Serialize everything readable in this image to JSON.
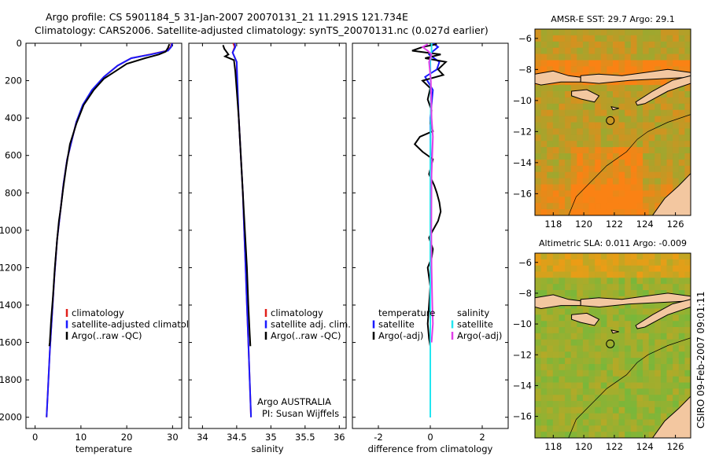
{
  "title_line1": "Argo profile: CS 5901184_5 31-Jan-2007 20070131_21 11.291S 121.734E",
  "title_line2": "Climatology: CARS2006. Satellite-adjusted climatology: synTS_20070131.nc (0.027d earlier)",
  "side_label": "CSIRO 09-Feb-2007 09:01:11",
  "colors": {
    "climatology": "#e0201a",
    "satellite": "#1a1aff",
    "argo": "#000000",
    "satellite_cyan": "#22e6f0",
    "argo_adj_magenta": "#e040e8",
    "land": "#f3c7a0",
    "ocean_green": "#52c84a"
  },
  "chart_data": [
    {
      "type": "line",
      "panel": "temperature",
      "xlabel": "temperature",
      "xlim": [
        -2,
        32
      ],
      "ylim": [
        2060,
        0
      ],
      "xticks": [
        "0",
        "10",
        "20",
        "30"
      ],
      "yticks": [
        "0",
        "200",
        "400",
        "600",
        "800",
        "1000",
        "1200",
        "1400",
        "1600",
        "1800",
        "2000"
      ],
      "legend": [
        "climatology",
        "satellite-adjusted climatology",
        "Argo(..raw -QC)"
      ],
      "series": [
        {
          "name": "climatology",
          "color": "#e0201a",
          "points": [
            [
              29.8,
              0
            ],
            [
              29.6,
              20
            ],
            [
              28.8,
              40
            ],
            [
              25,
              60
            ],
            [
              21,
              80
            ],
            [
              18,
              120
            ],
            [
              15,
              180
            ],
            [
              12.5,
              250
            ],
            [
              10.5,
              330
            ],
            [
              9,
              420
            ],
            [
              8,
              520
            ],
            [
              7,
              620
            ],
            [
              6.2,
              750
            ],
            [
              5.5,
              900
            ],
            [
              4.8,
              1050
            ],
            [
              4.2,
              1250
            ],
            [
              3.7,
              1450
            ],
            [
              3.2,
              1650
            ],
            [
              2.8,
              1850
            ],
            [
              2.5,
              2000
            ]
          ]
        },
        {
          "name": "satellite-adjusted climatology",
          "color": "#1a1aff",
          "points": [
            [
              29.9,
              0
            ],
            [
              29.7,
              20
            ],
            [
              29,
              40
            ],
            [
              25.2,
              60
            ],
            [
              21,
              80
            ],
            [
              18,
              120
            ],
            [
              15,
              180
            ],
            [
              12.4,
              250
            ],
            [
              10.4,
              330
            ],
            [
              9,
              420
            ],
            [
              8,
              520
            ],
            [
              7,
              620
            ],
            [
              6.2,
              750
            ],
            [
              5.5,
              900
            ],
            [
              4.8,
              1050
            ],
            [
              4.2,
              1250
            ],
            [
              3.7,
              1450
            ],
            [
              3.2,
              1650
            ],
            [
              2.8,
              1850
            ],
            [
              2.5,
              2000
            ]
          ]
        },
        {
          "name": "Argo(..raw -QC)",
          "color": "#000000",
          "points": [
            [
              29.3,
              5
            ],
            [
              29,
              25
            ],
            [
              28.5,
              45
            ],
            [
              27,
              60
            ],
            [
              24,
              80
            ],
            [
              20,
              110
            ],
            [
              17.5,
              150
            ],
            [
              15,
              190
            ],
            [
              12.8,
              250
            ],
            [
              10.6,
              330
            ],
            [
              9,
              430
            ],
            [
              7.6,
              540
            ],
            [
              6.8,
              660
            ],
            [
              6.1,
              780
            ],
            [
              5.6,
              880
            ],
            [
              5.2,
              950
            ],
            [
              4.8,
              1050
            ],
            [
              4.3,
              1200
            ],
            [
              3.9,
              1350
            ],
            [
              3.5,
              1480
            ],
            [
              3.2,
              1600
            ],
            [
              3.1,
              1620
            ]
          ]
        }
      ]
    },
    {
      "type": "line",
      "panel": "salinity",
      "xlabel": "salinity",
      "xlim": [
        33.8,
        36.1
      ],
      "ylim": [
        2060,
        0
      ],
      "xticks": [
        "34",
        "34.5",
        "35",
        "35.5",
        "36"
      ],
      "legend": [
        "climatology",
        "satellite adj. clim.",
        "Argo(..raw -QC)"
      ],
      "annotation": [
        "Argo AUSTRALIA",
        "PI: Susan Wijffels"
      ],
      "series": [
        {
          "name": "climatology",
          "color": "#e0201a",
          "points": [
            [
              34.45,
              0
            ],
            [
              34.47,
              20
            ],
            [
              34.44,
              50
            ],
            [
              34.5,
              100
            ],
            [
              34.5,
              200
            ],
            [
              34.53,
              400
            ],
            [
              34.56,
              600
            ],
            [
              34.59,
              800
            ],
            [
              34.61,
              1000
            ],
            [
              34.63,
              1200
            ],
            [
              34.65,
              1400
            ],
            [
              34.67,
              1600
            ],
            [
              34.69,
              1800
            ],
            [
              34.71,
              2000
            ]
          ]
        },
        {
          "name": "satellite adj. clim.",
          "color": "#1a1aff",
          "points": [
            [
              34.47,
              0
            ],
            [
              34.48,
              20
            ],
            [
              34.44,
              50
            ],
            [
              34.5,
              100
            ],
            [
              34.51,
              200
            ],
            [
              34.53,
              400
            ],
            [
              34.56,
              600
            ],
            [
              34.59,
              800
            ],
            [
              34.61,
              1000
            ],
            [
              34.63,
              1200
            ],
            [
              34.65,
              1400
            ],
            [
              34.67,
              1600
            ],
            [
              34.69,
              1800
            ],
            [
              34.71,
              2000
            ]
          ]
        },
        {
          "name": "Argo(..raw -QC)",
          "color": "#000000",
          "points": [
            [
              34.3,
              10
            ],
            [
              34.32,
              30
            ],
            [
              34.38,
              60
            ],
            [
              34.33,
              70
            ],
            [
              34.46,
              90
            ],
            [
              34.48,
              150
            ],
            [
              34.5,
              250
            ],
            [
              34.53,
              400
            ],
            [
              34.56,
              600
            ],
            [
              34.59,
              800
            ],
            [
              34.62,
              1000
            ],
            [
              34.65,
              1200
            ],
            [
              34.67,
              1400
            ],
            [
              34.69,
              1550
            ],
            [
              34.7,
              1620
            ]
          ]
        }
      ]
    },
    {
      "type": "line",
      "panel": "difference",
      "xlabel": "difference from climatology",
      "xlim": [
        -3,
        3
      ],
      "ylim": [
        2060,
        0
      ],
      "xticks": [
        "-2",
        "0",
        "2"
      ],
      "legend_left": [
        "temperature",
        "satellite",
        "Argo(-adj)"
      ],
      "legend_right": [
        "salinity",
        "satellite",
        "Argo(-adj)"
      ],
      "series": [
        {
          "name": "satellite",
          "color": "#1a1aff",
          "points": [
            [
              0.1,
              0
            ],
            [
              0.3,
              20
            ],
            [
              -0.05,
              60
            ],
            [
              0.35,
              100
            ],
            [
              0.25,
              140
            ],
            [
              -0.2,
              180
            ],
            [
              0.1,
              250
            ],
            [
              0,
              400
            ],
            [
              0.02,
              800
            ],
            [
              0.0,
              1200
            ],
            [
              0,
              1600
            ],
            [
              0,
              2000
            ]
          ]
        },
        {
          "name": "Argo(-adj)",
          "color": "#000000",
          "points": [
            [
              0.25,
              5
            ],
            [
              -0.3,
              20
            ],
            [
              -0.7,
              40
            ],
            [
              0.4,
              60
            ],
            [
              -0.2,
              80
            ],
            [
              0.6,
              100
            ],
            [
              0.3,
              140
            ],
            [
              0.5,
              170
            ],
            [
              -0.3,
              200
            ],
            [
              0,
              240
            ],
            [
              -0.1,
              300
            ],
            [
              0.05,
              360
            ],
            [
              0.0,
              430
            ],
            [
              0.1,
              470
            ],
            [
              -0.4,
              500
            ],
            [
              -0.6,
              540
            ],
            [
              -0.3,
              580
            ],
            [
              0.1,
              620
            ],
            [
              -0.05,
              700
            ],
            [
              0.15,
              760
            ],
            [
              0.25,
              800
            ],
            [
              0.35,
              850
            ],
            [
              0.4,
              900
            ],
            [
              0.3,
              950
            ],
            [
              0.1,
              1000
            ],
            [
              -0.05,
              1040
            ],
            [
              0.1,
              1100
            ],
            [
              0.05,
              1150
            ],
            [
              -0.1,
              1200
            ],
            [
              0,
              1300
            ],
            [
              -0.05,
              1400
            ],
            [
              -0.1,
              1500
            ],
            [
              -0.05,
              1580
            ],
            [
              0,
              1620
            ]
          ]
        },
        {
          "name": "satellite",
          "color": "#22e6f0",
          "points": [
            [
              0.05,
              0
            ],
            [
              0.05,
              40
            ],
            [
              0,
              100
            ],
            [
              0.02,
              300
            ],
            [
              0,
              600
            ],
            [
              0,
              1000
            ],
            [
              0,
              1400
            ],
            [
              0,
              1800
            ],
            [
              0,
              2000
            ]
          ]
        },
        {
          "name": "Argo(-adj)",
          "color": "#e040e8",
          "points": [
            [
              -0.1,
              5
            ],
            [
              -0.3,
              20
            ],
            [
              -0.1,
              40
            ],
            [
              0.05,
              60
            ],
            [
              -0.05,
              100
            ],
            [
              0.02,
              200
            ],
            [
              0.05,
              400
            ],
            [
              0.1,
              500
            ],
            [
              0.05,
              700
            ],
            [
              0.04,
              1000
            ],
            [
              0.05,
              1200
            ],
            [
              0.08,
              1400
            ],
            [
              0.1,
              1500
            ],
            [
              0.05,
              1600
            ]
          ]
        }
      ]
    },
    {
      "type": "heatmap",
      "panel": "map_sst",
      "title": "AMSR-E SST: 29.7 Argo: 29.1",
      "xlim": [
        116.8,
        127
      ],
      "ylim": [
        -17.4,
        -5.4
      ],
      "xticks": [
        "118",
        "120",
        "122",
        "124",
        "126"
      ],
      "yticks": [
        "-6",
        "-8",
        "-10",
        "-12",
        "-14",
        "-16"
      ],
      "argo_position": {
        "lon": 121.734,
        "lat": -11.291
      }
    },
    {
      "type": "heatmap",
      "panel": "map_sla",
      "title": "Altimetric SLA: 0.011 Argo: -0.009",
      "xlim": [
        116.8,
        127
      ],
      "ylim": [
        -17.4,
        -5.4
      ],
      "xticks": [
        "118",
        "120",
        "122",
        "124",
        "126"
      ],
      "yticks": [
        "-6",
        "-8",
        "-10",
        "-12",
        "-14",
        "-16"
      ],
      "argo_position": {
        "lon": 121.734,
        "lat": -11.291
      }
    }
  ]
}
